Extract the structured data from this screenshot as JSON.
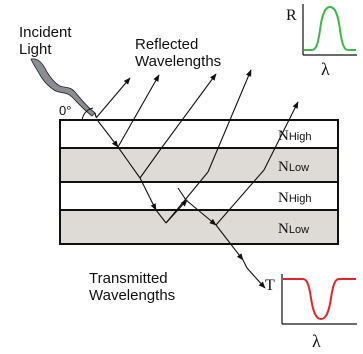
{
  "labels": {
    "incident_line1": "Incident",
    "incident_line2": "Light",
    "angle": "0°",
    "reflected_line1": "Reflected",
    "reflected_line2": "Wavelengths",
    "transmitted_line1": "Transmitted",
    "transmitted_line2": "Wavelengths"
  },
  "layers": [
    {
      "main": "N",
      "sub": "High",
      "fill": "#ffffff"
    },
    {
      "main": "N",
      "sub": "Low",
      "fill": "#dedbd6"
    },
    {
      "main": "N",
      "sub": "High",
      "fill": "#ffffff"
    },
    {
      "main": "N",
      "sub": "Low",
      "fill": "#dedbd6"
    }
  ],
  "reflectance_inset": {
    "ylabel": "R",
    "xlabel": "λ",
    "color": "#3cb84a",
    "shape": "peak"
  },
  "transmittance_inset": {
    "ylabel": "T",
    "xlabel": "λ",
    "color": "#e3262b",
    "shape": "dip"
  }
}
